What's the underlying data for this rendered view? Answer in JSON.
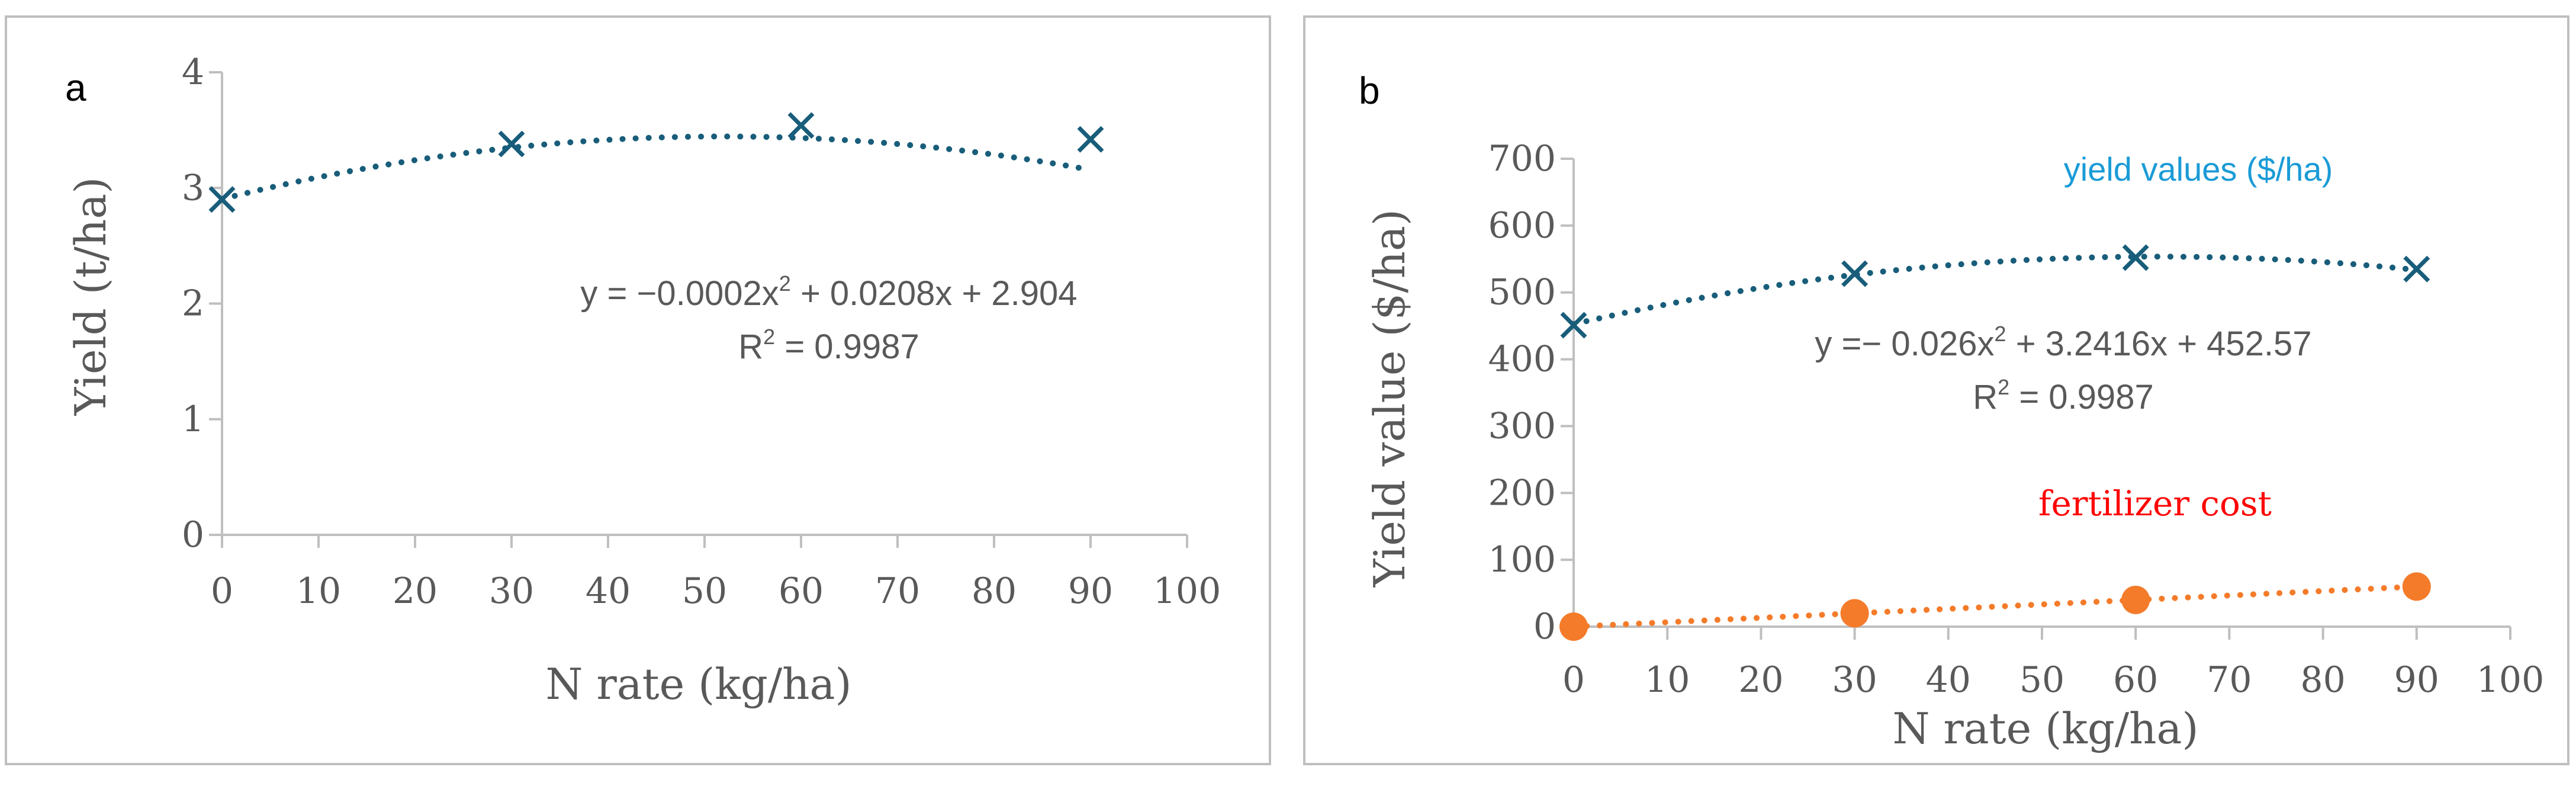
{
  "colors": {
    "yield_series": "#185d7a",
    "cost_series": "#f47b2a",
    "axis": "#bfbfbf",
    "text": "#595959",
    "annotation_blue": "#1a9bd7",
    "annotation_red": "#ff0000"
  },
  "chart_data": [
    {
      "type": "scatter",
      "panel_label": "a",
      "xlabel": "N rate (kg/ha)",
      "ylabel": "Yield (t/ha)",
      "xlim": [
        0,
        100
      ],
      "ylim": [
        0,
        4
      ],
      "x_ticks": [
        "0",
        "10",
        "20",
        "30",
        "40",
        "50",
        "60",
        "70",
        "80",
        "90",
        "100"
      ],
      "y_ticks": [
        "0",
        "1",
        "2",
        "3",
        "4"
      ],
      "series": [
        {
          "name": "Yield",
          "marker": "x",
          "x": [
            0,
            30,
            60,
            90
          ],
          "y": [
            2.9,
            3.38,
            3.54,
            3.42
          ],
          "trendline": {
            "type": "polynomial",
            "coefficients": [
              -0.0002,
              0.0208,
              2.904
            ]
          }
        }
      ],
      "equation": {
        "line1_pre": "y = −0.0002x",
        "line1_sup": "2",
        "line1_post": " + 0.0208x + 2.904",
        "line2_pre": "R",
        "line2_sup": "2",
        "line2_post": " = 0.9987"
      }
    },
    {
      "type": "scatter",
      "panel_label": "b",
      "xlabel": "N rate (kg/ha)",
      "ylabel": "Yield value ($/ha)",
      "xlim": [
        0,
        100
      ],
      "ylim": [
        0,
        700
      ],
      "x_ticks": [
        "0",
        "10",
        "20",
        "30",
        "40",
        "50",
        "60",
        "70",
        "80",
        "90",
        "100"
      ],
      "y_ticks": [
        "0",
        "100",
        "200",
        "300",
        "400",
        "500",
        "600",
        "700"
      ],
      "series": [
        {
          "name": "yield values ($/ha)",
          "marker": "x",
          "x": [
            0,
            30,
            60,
            90
          ],
          "y": [
            451,
            528,
            552,
            535
          ],
          "trendline": {
            "type": "polynomial",
            "coefficients": [
              -0.026,
              3.2416,
              452.57
            ]
          }
        },
        {
          "name": "fertilizer cost",
          "marker": "circle",
          "x": [
            0,
            30,
            60,
            90
          ],
          "y": [
            0,
            20,
            40,
            60
          ],
          "trendline": {
            "type": "linear",
            "coefficients": [
              0,
              0.6667,
              0
            ]
          }
        }
      ],
      "equation": {
        "line1_pre": "y =− 0.026x",
        "line1_sup": "2",
        "line1_post": " + 3.2416x + 452.57",
        "line2_pre": "R",
        "line2_sup": "2",
        "line2_post": " = 0.9987"
      },
      "annotations": {
        "yield_label": "yield values ($/ha)",
        "cost_label": "fertilizer cost"
      }
    }
  ]
}
